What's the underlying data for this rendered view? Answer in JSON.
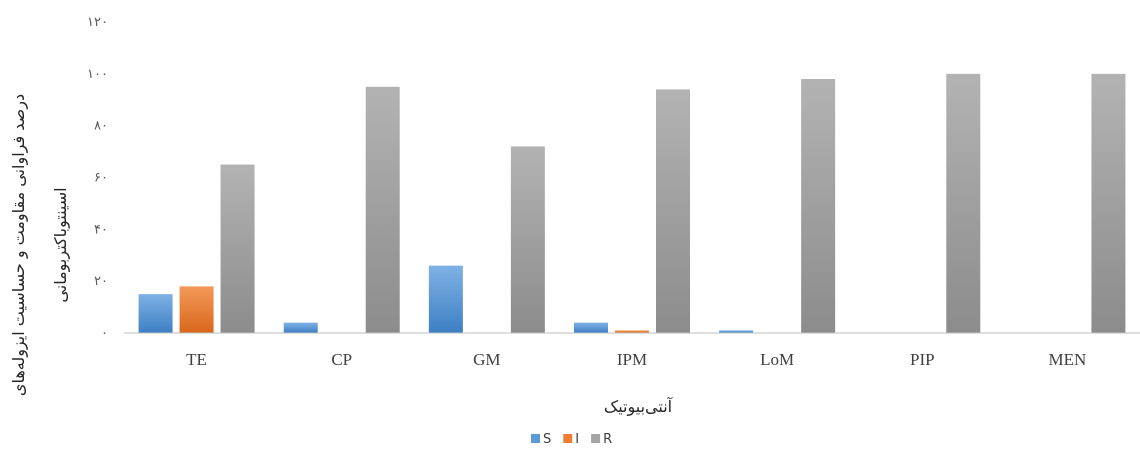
{
  "chart_data": {
    "type": "bar",
    "categories": [
      "TE",
      "CP",
      "GM",
      "IPM",
      "LoM",
      "PIP",
      "MEN"
    ],
    "series": [
      {
        "name": "S",
        "color": "#5b9bd5",
        "values": [
          15,
          4,
          26,
          4,
          1,
          0,
          0
        ]
      },
      {
        "name": "I",
        "color": "#ed7d31",
        "values": [
          18,
          0,
          0,
          1,
          0,
          0,
          0
        ]
      },
      {
        "name": "R",
        "color": "#a5a5a5",
        "values": [
          65,
          95,
          72,
          94,
          98,
          100,
          100
        ]
      }
    ],
    "ylim": [
      0,
      120
    ],
    "yticks": [
      0,
      20,
      40,
      60,
      80,
      100,
      120
    ],
    "ytick_labels": [
      "۰",
      "۲۰",
      "۴۰",
      "۶۰",
      "۸۰",
      "۱۰۰",
      "۱۲۰"
    ],
    "xlabel": "آنتی‌بیوتیک",
    "ylabel_lines": [
      "درصد فراوانی مقاومت و حساسیت ایزوله‌های",
      "اسینتوباکتربومانی"
    ],
    "legend_position": "bottom",
    "grid": false
  }
}
